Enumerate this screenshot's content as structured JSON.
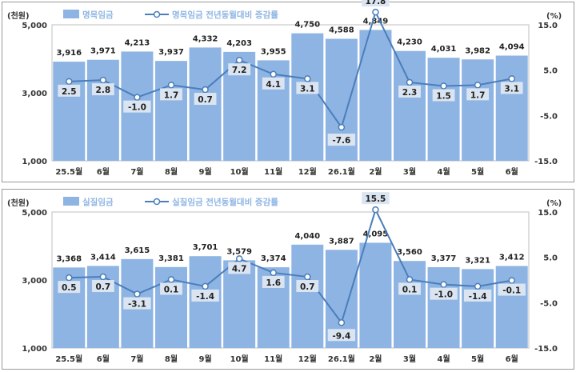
{
  "chart_data": [
    {
      "type": "bar",
      "categories": [
        "25.5월",
        "6월",
        "7월",
        "8월",
        "9월",
        "10월",
        "11월",
        "12월",
        "26.1월",
        "2월",
        "3월",
        "4월",
        "5월",
        "6월"
      ],
      "left_unit": "(천원)",
      "right_unit": "(%)",
      "ylim": [
        1000,
        5000
      ],
      "yticks": [
        "1,000",
        "3,000",
        "5,000"
      ],
      "y2lim": [
        -15,
        15
      ],
      "y2ticks": [
        "-15.0",
        "-5.0",
        "5.0",
        "15.0"
      ],
      "legend_placement": "top",
      "series": [
        {
          "name": "명목임금",
          "type": "bar",
          "color": "#8eb4e3",
          "values": [
            3916,
            3971,
            4213,
            3937,
            4332,
            4203,
            3955,
            4750,
            4588,
            4849,
            4230,
            4031,
            3982,
            4094
          ],
          "labels": [
            "3,916",
            "3,971",
            "4,213",
            "3,937",
            "4,332",
            "4,203",
            "3,955",
            "4,750",
            "4,588",
            "4,849",
            "4,230",
            "4,031",
            "3,982",
            "4,094"
          ]
        },
        {
          "name": "명목임금 전년동월대비 증감률",
          "type": "line",
          "color": "#4a7ebb",
          "values": [
            2.5,
            2.8,
            -1.0,
            1.7,
            0.7,
            7.2,
            4.1,
            3.1,
            -7.6,
            17.8,
            2.3,
            1.5,
            1.7,
            3.1
          ],
          "labels": [
            "2.5",
            "2.8",
            "-1.0",
            "1.7",
            "0.7",
            "7.2",
            "4.1",
            "3.1",
            "-7.6",
            "17.8",
            "2.3",
            "1.5",
            "1.7",
            "3.1"
          ]
        }
      ]
    },
    {
      "type": "bar",
      "categories": [
        "25.5월",
        "6월",
        "7월",
        "8월",
        "9월",
        "10월",
        "11월",
        "12월",
        "26.1월",
        "2월",
        "3월",
        "4월",
        "5월",
        "6월"
      ],
      "left_unit": "(천원)",
      "right_unit": "(%)",
      "ylim": [
        1000,
        5000
      ],
      "yticks": [
        "1,000",
        "3,000",
        "5,000"
      ],
      "y2lim": [
        -15,
        15
      ],
      "y2ticks": [
        "-15.0",
        "-5.0",
        "5.0",
        "15.0"
      ],
      "legend_placement": "top",
      "series": [
        {
          "name": "실질임금",
          "type": "bar",
          "color": "#8eb4e3",
          "values": [
            3368,
            3414,
            3615,
            3381,
            3701,
            3579,
            3374,
            4040,
            3887,
            4095,
            3560,
            3377,
            3321,
            3412
          ],
          "labels": [
            "3,368",
            "3,414",
            "3,615",
            "3,381",
            "3,701",
            "3,579",
            "3,374",
            "4,040",
            "3,887",
            "4,095",
            "3,560",
            "3,377",
            "3,321",
            "3,412"
          ]
        },
        {
          "name": "실질임금 전년동월대비 증감률",
          "type": "line",
          "color": "#4a7ebb",
          "values": [
            0.5,
            0.7,
            -3.1,
            0.1,
            -1.4,
            4.7,
            1.6,
            0.7,
            -9.4,
            15.5,
            0.1,
            -1.0,
            -1.4,
            -0.1
          ],
          "labels": [
            "0.5",
            "0.7",
            "-3.1",
            "0.1",
            "-1.4",
            "4.7",
            "1.6",
            "0.7",
            "-9.4",
            "15.5",
            "0.1",
            "-1.0",
            "-1.4",
            "-0.1"
          ]
        }
      ]
    }
  ]
}
